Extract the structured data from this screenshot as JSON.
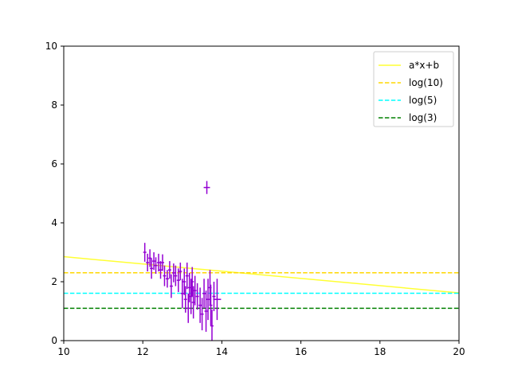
{
  "chart_data": {
    "type": "scatter",
    "title": "",
    "xlabel": "",
    "ylabel": "",
    "xlim": [
      10,
      20
    ],
    "ylim": [
      0,
      10
    ],
    "xticks": [
      10,
      12,
      14,
      16,
      18,
      20
    ],
    "yticks": [
      0,
      2,
      4,
      6,
      8,
      10
    ],
    "grid": false,
    "legend_position": "top-right",
    "legend": [
      {
        "label": "a*x+b",
        "color": "#ffff33",
        "dash": "solid"
      },
      {
        "label": "log(10)",
        "color": "#ffd700",
        "dash": "dashed"
      },
      {
        "label": "log(5)",
        "color": "#00ffff",
        "dash": "dashed"
      },
      {
        "label": "log(3)",
        "color": "#008000",
        "dash": "dashed"
      }
    ],
    "lines": [
      {
        "name": "a*x+b",
        "color": "#ffff33",
        "dash": "solid",
        "points": [
          [
            10,
            2.85
          ],
          [
            20,
            1.62
          ]
        ]
      },
      {
        "name": "log(10)",
        "color": "#ffd700",
        "dash": "dashed",
        "points": [
          [
            10,
            2.303
          ],
          [
            20,
            2.303
          ]
        ]
      },
      {
        "name": "log(5)",
        "color": "#00ffff",
        "dash": "dashed",
        "points": [
          [
            10,
            1.609
          ],
          [
            20,
            1.609
          ]
        ]
      },
      {
        "name": "log(3)",
        "color": "#008000",
        "dash": "dashed",
        "points": [
          [
            10,
            1.099
          ],
          [
            20,
            1.099
          ]
        ]
      }
    ],
    "errorbar_series": {
      "color": "#9400d3",
      "points": [
        {
          "x": 12.05,
          "y": 3.0,
          "xerr": 0.04,
          "yerr": 0.32
        },
        {
          "x": 12.12,
          "y": 2.65,
          "xerr": 0.04,
          "yerr": 0.3
        },
        {
          "x": 12.18,
          "y": 2.8,
          "xerr": 0.04,
          "yerr": 0.3
        },
        {
          "x": 12.22,
          "y": 2.45,
          "xerr": 0.04,
          "yerr": 0.35
        },
        {
          "x": 12.28,
          "y": 2.7,
          "xerr": 0.04,
          "yerr": 0.3
        },
        {
          "x": 12.33,
          "y": 2.55,
          "xerr": 0.04,
          "yerr": 0.28
        },
        {
          "x": 12.4,
          "y": 2.65,
          "xerr": 0.04,
          "yerr": 0.3
        },
        {
          "x": 12.45,
          "y": 2.4,
          "xerr": 0.04,
          "yerr": 0.3
        },
        {
          "x": 12.5,
          "y": 2.65,
          "xerr": 0.04,
          "yerr": 0.28
        },
        {
          "x": 12.55,
          "y": 2.2,
          "xerr": 0.04,
          "yerr": 0.35
        },
        {
          "x": 12.62,
          "y": 2.1,
          "xerr": 0.04,
          "yerr": 0.3
        },
        {
          "x": 12.68,
          "y": 2.4,
          "xerr": 0.04,
          "yerr": 0.3
        },
        {
          "x": 12.72,
          "y": 1.85,
          "xerr": 0.04,
          "yerr": 0.4
        },
        {
          "x": 12.78,
          "y": 2.3,
          "xerr": 0.04,
          "yerr": 0.32
        },
        {
          "x": 12.83,
          "y": 2.2,
          "xerr": 0.04,
          "yerr": 0.35
        },
        {
          "x": 12.9,
          "y": 2.05,
          "xerr": 0.04,
          "yerr": 0.4
        },
        {
          "x": 12.95,
          "y": 2.35,
          "xerr": 0.04,
          "yerr": 0.3
        },
        {
          "x": 13.0,
          "y": 1.6,
          "xerr": 0.04,
          "yerr": 0.5
        },
        {
          "x": 13.05,
          "y": 2.0,
          "xerr": 0.04,
          "yerr": 0.45
        },
        {
          "x": 13.08,
          "y": 1.4,
          "xerr": 0.04,
          "yerr": 0.45
        },
        {
          "x": 13.12,
          "y": 2.2,
          "xerr": 0.04,
          "yerr": 0.45
        },
        {
          "x": 13.15,
          "y": 1.1,
          "xerr": 0.04,
          "yerr": 0.5
        },
        {
          "x": 13.18,
          "y": 1.8,
          "xerr": 0.04,
          "yerr": 0.5
        },
        {
          "x": 13.22,
          "y": 1.5,
          "xerr": 0.04,
          "yerr": 0.6
        },
        {
          "x": 13.25,
          "y": 2.0,
          "xerr": 0.04,
          "yerr": 0.5
        },
        {
          "x": 13.28,
          "y": 1.3,
          "xerr": 0.04,
          "yerr": 0.55
        },
        {
          "x": 13.32,
          "y": 1.7,
          "xerr": 0.04,
          "yerr": 0.5
        },
        {
          "x": 13.38,
          "y": 1.5,
          "xerr": 0.04,
          "yerr": 0.45
        },
        {
          "x": 13.45,
          "y": 1.2,
          "xerr": 0.04,
          "yerr": 0.6
        },
        {
          "x": 13.5,
          "y": 0.9,
          "xerr": 0.04,
          "yerr": 0.55
        },
        {
          "x": 13.55,
          "y": 1.6,
          "xerr": 0.04,
          "yerr": 0.5
        },
        {
          "x": 13.6,
          "y": 1.0,
          "xerr": 0.04,
          "yerr": 0.7
        },
        {
          "x": 13.62,
          "y": 5.2,
          "xerr": 0.08,
          "yerr": 0.22
        },
        {
          "x": 13.65,
          "y": 1.4,
          "xerr": 0.04,
          "yerr": 0.7
        },
        {
          "x": 13.7,
          "y": 1.8,
          "xerr": 0.04,
          "yerr": 0.6
        },
        {
          "x": 13.72,
          "y": 1.2,
          "xerr": 0.04,
          "yerr": 0.7
        },
        {
          "x": 13.75,
          "y": 0.5,
          "xerr": 0.04,
          "yerr": 0.55
        },
        {
          "x": 13.8,
          "y": 1.5,
          "xerr": 0.04,
          "yerr": 0.5
        },
        {
          "x": 13.88,
          "y": 1.4,
          "xerr": 0.1,
          "yerr": 0.7
        }
      ]
    }
  }
}
